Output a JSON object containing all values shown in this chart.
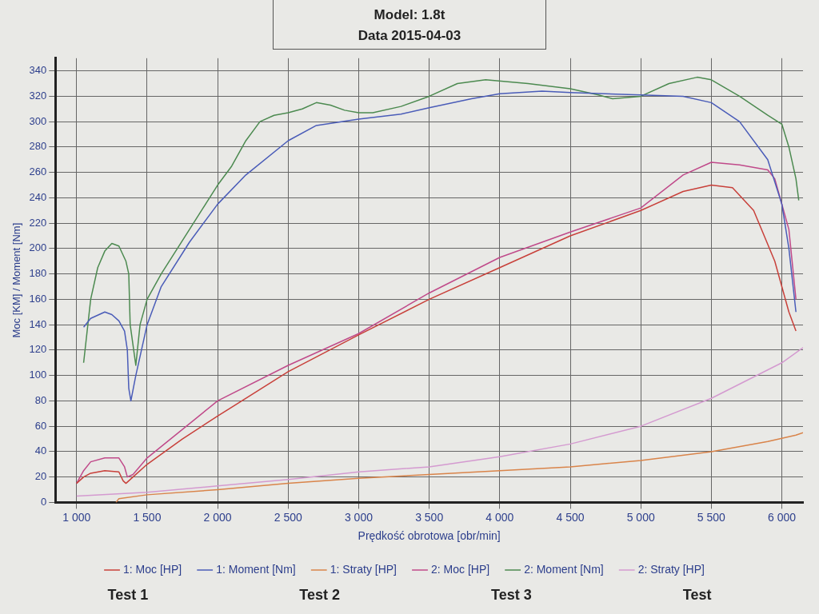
{
  "chart_data": {
    "type": "line",
    "xlabel": "Prędkość obrotowa [obr/min]",
    "ylabel": "Moc [KM] / Moment [Nm]",
    "xlim": [
      850,
      6150
    ],
    "ylim": [
      0,
      350
    ],
    "xticks": [
      {
        "value": 1000,
        "label": "1 000"
      },
      {
        "value": 1500,
        "label": "1 500"
      },
      {
        "value": 2000,
        "label": "2 000"
      },
      {
        "value": 2500,
        "label": "2 500"
      },
      {
        "value": 3000,
        "label": "3 000"
      },
      {
        "value": 3500,
        "label": "3 500"
      },
      {
        "value": 4000,
        "label": "4 000"
      },
      {
        "value": 4500,
        "label": "4 500"
      },
      {
        "value": 5000,
        "label": "5 000"
      },
      {
        "value": 5500,
        "label": "5 500"
      },
      {
        "value": 6000,
        "label": "6 000"
      }
    ],
    "yticks": [
      0,
      20,
      40,
      60,
      80,
      100,
      120,
      140,
      160,
      180,
      200,
      220,
      240,
      260,
      280,
      300,
      320,
      340
    ],
    "grid": true,
    "legend": "bottom",
    "marker": "none",
    "line_style": "solid",
    "annotations": [
      "Model: 1.8t",
      "Data 2015-04-03",
      "Test 1",
      "Test 2",
      "Test 3",
      "Test"
    ],
    "series": [
      {
        "name": "1: Moc [HP]",
        "color": "#c8403a",
        "x": [
          1000,
          1050,
          1100,
          1200,
          1300,
          1330,
          1350,
          1400,
          1500,
          1750,
          2000,
          2500,
          3000,
          3500,
          4000,
          4500,
          5000,
          5300,
          5500,
          5650,
          5800,
          5950,
          6050,
          6100
        ],
        "values": [
          15,
          20,
          23,
          25,
          24,
          17,
          15,
          20,
          30,
          50,
          68,
          103,
          132,
          160,
          185,
          210,
          230,
          245,
          250,
          248,
          230,
          190,
          150,
          135
        ]
      },
      {
        "name": "1: Moment [Nm]",
        "color": "#4a5cb8",
        "x": [
          1050,
          1100,
          1200,
          1250,
          1300,
          1340,
          1360,
          1370,
          1385,
          1420,
          1500,
          1600,
          1800,
          2000,
          2200,
          2500,
          2700,
          3000,
          3300,
          3500,
          3800,
          4000,
          4300,
          4500,
          5000,
          5300,
          5500,
          5700,
          5900,
          6000,
          6050,
          6080,
          6100
        ],
        "values": [
          138,
          145,
          150,
          148,
          143,
          135,
          120,
          90,
          80,
          100,
          140,
          170,
          205,
          235,
          258,
          285,
          297,
          302,
          306,
          311,
          318,
          322,
          324,
          323,
          321,
          320,
          315,
          300,
          270,
          235,
          200,
          170,
          150
        ]
      },
      {
        "name": "1: Straty [HP]",
        "color": "#d9844a",
        "x": [
          1280,
          1300,
          1500,
          2000,
          2500,
          3000,
          3500,
          4000,
          4500,
          5000,
          5500,
          5900,
          6100,
          6150
        ],
        "values": [
          0,
          3,
          6,
          10,
          15,
          19,
          22,
          25,
          28,
          33,
          40,
          48,
          53,
          55
        ]
      },
      {
        "name": "2: Moc [HP]",
        "color": "#c04a8a",
        "x": [
          1000,
          1050,
          1100,
          1200,
          1300,
          1340,
          1360,
          1400,
          1500,
          2000,
          2500,
          3000,
          3500,
          4000,
          4500,
          5000,
          5300,
          5500,
          5700,
          5900,
          5950,
          6050,
          6100
        ],
        "values": [
          15,
          25,
          32,
          35,
          35,
          28,
          20,
          22,
          35,
          80,
          108,
          133,
          165,
          193,
          213,
          232,
          258,
          268,
          266,
          262,
          255,
          215,
          160
        ]
      },
      {
        "name": "2: Moment [Nm]",
        "color": "#4c8a50",
        "x": [
          1050,
          1100,
          1150,
          1200,
          1250,
          1300,
          1350,
          1370,
          1380,
          1420,
          1450,
          1500,
          1600,
          1800,
          2000,
          2100,
          2200,
          2300,
          2400,
          2500,
          2600,
          2700,
          2800,
          2900,
          3000,
          3100,
          3300,
          3500,
          3700,
          3900,
          4200,
          4500,
          4700,
          4800,
          5000,
          5200,
          5400,
          5500,
          5700,
          5900,
          6000,
          6050,
          6100,
          6120
        ],
        "values": [
          110,
          160,
          185,
          198,
          204,
          202,
          190,
          180,
          140,
          108,
          140,
          160,
          180,
          215,
          250,
          265,
          285,
          300,
          305,
          307,
          310,
          315,
          313,
          309,
          307,
          307,
          312,
          320,
          330,
          333,
          330,
          326,
          321,
          318,
          320,
          330,
          335,
          333,
          320,
          305,
          298,
          280,
          255,
          238
        ]
      },
      {
        "name": "2: Straty [HP]",
        "color": "#d49ad0",
        "x": [
          1000,
          1500,
          2000,
          2500,
          3000,
          3500,
          4000,
          4500,
          5000,
          5500,
          6000,
          6150
        ],
        "values": [
          5,
          8,
          13,
          18,
          24,
          28,
          36,
          46,
          60,
          82,
          110,
          122
        ]
      }
    ]
  }
}
